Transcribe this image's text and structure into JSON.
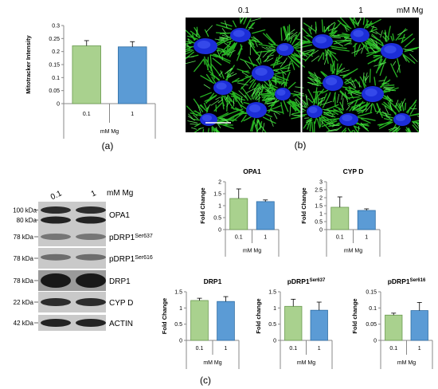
{
  "colors": {
    "low": "#a9d18e",
    "high": "#5b9bd5",
    "low_edge": "#6a9a4f",
    "high_edge": "#2e6da4"
  },
  "panel_a": {
    "caption": "(a)",
    "chart_data": {
      "type": "bar",
      "ylabel": "Mitotracker Intensity",
      "xlabel": "mM Mg",
      "categories": [
        "0.1",
        "1"
      ],
      "values": [
        0.222,
        0.218
      ],
      "errors": [
        0.02,
        0.02
      ],
      "ylim": [
        0,
        0.3
      ],
      "yticks": [
        "0",
        "0.05",
        "0.1",
        "0.15",
        "0.2",
        "0.25",
        "0.3"
      ]
    }
  },
  "panel_b": {
    "caption": "(b)",
    "label_left": "0.1",
    "label_right": "1",
    "unit": "mM Mg"
  },
  "panel_c": {
    "caption": "(c)",
    "blot": {
      "lane_labels": [
        "0.1",
        "1"
      ],
      "unit": "mM Mg",
      "rows": [
        {
          "kda": [
            "100 kDa",
            "80 kDa"
          ],
          "protein": "OPA1"
        },
        {
          "kda": [
            "78 kDa"
          ],
          "protein": "pDRP1",
          "sup": "Ser637"
        },
        {
          "kda": [
            "78 kDa"
          ],
          "protein": "pDRP1",
          "sup": "Ser616"
        },
        {
          "kda": [
            "78 kDa"
          ],
          "protein": "DRP1"
        },
        {
          "kda": [
            "22 kDa"
          ],
          "protein": "CYP D"
        },
        {
          "kda": [
            "42 kDa"
          ],
          "protein": "ACTIN"
        }
      ]
    },
    "charts": [
      {
        "title": "OPA1",
        "ylabel": "Fold Change",
        "xlabel": "mM Mg",
        "categories": [
          "0.1",
          "1"
        ],
        "values": [
          1.3,
          1.17
        ],
        "errors": [
          0.4,
          0.07
        ],
        "ylim": [
          0,
          2
        ],
        "yticks": [
          "0",
          "0.5",
          "1",
          "1.5",
          "2"
        ]
      },
      {
        "title": "CYP D",
        "ylabel": "Fold Change",
        "xlabel": "mM Mg",
        "categories": [
          "0.1",
          "1"
        ],
        "values": [
          1.4,
          1.2
        ],
        "errors": [
          0.65,
          0.1
        ],
        "ylim": [
          0,
          3
        ],
        "yticks": [
          "0",
          "0.5",
          "1",
          "1.5",
          "2",
          "2.5",
          "3"
        ]
      },
      {
        "title": "DRP1",
        "ylabel": "Fold Change",
        "xlabel": "mM Mg",
        "categories": [
          "0.1",
          "1"
        ],
        "values": [
          1.23,
          1.2
        ],
        "errors": [
          0.07,
          0.15
        ],
        "ylim": [
          0,
          1.5
        ],
        "yticks": [
          "0",
          "0.5",
          "1",
          "1.5"
        ]
      },
      {
        "title": "pDRP1",
        "title_sup": "Ser637",
        "ylabel": "Fold change",
        "xlabel": "mM Mg",
        "categories": [
          "0.1",
          "1"
        ],
        "values": [
          1.05,
          0.93
        ],
        "errors": [
          0.22,
          0.25
        ],
        "ylim": [
          0,
          1.5
        ],
        "yticks": [
          "0",
          "0.5",
          "1",
          "1.5"
        ]
      },
      {
        "title": "pDRP1",
        "title_sup": "Ser616",
        "ylabel": "Fold change",
        "xlabel": "mM Mg",
        "categories": [
          "0.1",
          "1"
        ],
        "values": [
          0.078,
          0.092
        ],
        "errors": [
          0.006,
          0.025
        ],
        "ylim": [
          0,
          0.15
        ],
        "yticks": [
          "0",
          "0.05",
          "0.1",
          "0.15"
        ]
      }
    ]
  }
}
